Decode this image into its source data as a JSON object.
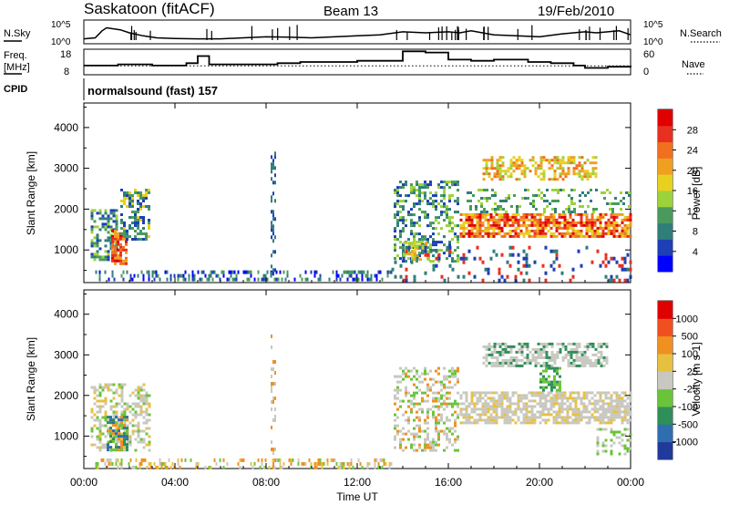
{
  "header": {
    "station": "Saskatoon (fitACF)",
    "beam": "Beam 13",
    "date": "19/Feb/2010"
  },
  "strip_labels": {
    "nsky": "N.Sky",
    "nsearch": "N.Search",
    "freq_line1": "Freq.",
    "freq_line2": "[MHz]",
    "nave": "Nave",
    "cpid": "CPID",
    "cpid_value": "normalsound (fast) 157"
  },
  "chart_data": [
    {
      "type": "line",
      "name": "noise-strip",
      "y_ticks_left": [
        "10^5",
        "10^0"
      ],
      "y_ticks_right": [
        "10^5",
        "10^0"
      ],
      "x_hours": [
        0,
        0.5,
        0.8,
        1.0,
        1.6,
        2.0,
        2.6,
        3.2,
        4.0,
        5.0,
        6.0,
        7.0,
        8.0,
        9.0,
        10.0,
        11.0,
        12.0,
        13.0,
        14.0,
        15.0,
        16.0,
        16.5,
        17.0,
        17.5,
        18.0,
        19.0,
        20.0,
        21.0,
        21.5,
        22.0,
        22.5,
        23.0,
        23.5,
        24.0
      ],
      "values": [
        0.2,
        0.25,
        0.6,
        0.75,
        0.65,
        0.5,
        0.35,
        0.25,
        0.22,
        0.2,
        0.2,
        0.25,
        0.3,
        0.28,
        0.25,
        0.3,
        0.35,
        0.4,
        0.55,
        0.5,
        0.55,
        0.5,
        0.6,
        0.5,
        0.4,
        0.35,
        0.3,
        0.45,
        0.5,
        0.55,
        0.5,
        0.55,
        0.6,
        0.4
      ]
    },
    {
      "type": "line",
      "name": "freq-nave-strip",
      "y_ticks_left": [
        "18",
        "8"
      ],
      "y_ticks_right": [
        "60",
        "0"
      ],
      "x_hours": [
        0,
        1.5,
        3,
        4.5,
        5.0,
        5.5,
        8.5,
        9.5,
        12.0,
        14.0,
        15.0,
        16.0,
        17.0,
        18.0,
        19.5,
        20.5,
        21.5,
        22.0,
        23.0,
        24.0
      ],
      "freq_mhz": [
        11.5,
        12.0,
        11.5,
        12.5,
        15.5,
        12.0,
        12.5,
        13.0,
        13.5,
        17.5,
        17.0,
        14.0,
        13.5,
        14.0,
        13.0,
        12.5,
        11.5,
        10.5,
        11.0,
        11.5
      ],
      "nave_level": 20
    },
    {
      "type": "heatmap",
      "name": "power-panel",
      "xlabel": "Time UT",
      "ylabel": "Slant Range [km]",
      "x_ticks": [
        "00:00",
        "04:00",
        "08:00",
        "12:00",
        "16:00",
        "20:00",
        "00:00"
      ],
      "y_ticks": [
        "1000",
        "2000",
        "3000",
        "4000"
      ],
      "ylim": [
        200,
        4600
      ],
      "colorbar": {
        "label": "Power [dB]",
        "ticks": [
          "4",
          "8",
          "12",
          "16",
          "20",
          "24",
          "28"
        ],
        "colors": [
          "#0000ff",
          "#1e3fb5",
          "#2f7e7a",
          "#4a9a5e",
          "#9cd33a",
          "#e8d020",
          "#f0a020",
          "#f07020",
          "#e83020",
          "#e00000"
        ]
      }
    },
    {
      "type": "heatmap",
      "name": "velocity-panel",
      "xlabel": "Time UT",
      "ylabel": "Slant Range [km]",
      "x_ticks": [
        "00:00",
        "04:00",
        "08:00",
        "12:00",
        "16:00",
        "20:00",
        "00:00"
      ],
      "y_ticks": [
        "1000",
        "2000",
        "3000",
        "4000"
      ],
      "ylim": [
        200,
        4600
      ],
      "colorbar": {
        "label": "Velocity [m s-1]",
        "ticks": [
          "1000",
          "500",
          "100",
          "25",
          "-25",
          "-100",
          "-500",
          "-1000"
        ],
        "colors": [
          "#1f3a9a",
          "#2f6fb0",
          "#2f8f5a",
          "#6ac43a",
          "#c8c8c0",
          "#e8c040",
          "#f09020",
          "#f05020",
          "#e00000"
        ]
      }
    }
  ]
}
